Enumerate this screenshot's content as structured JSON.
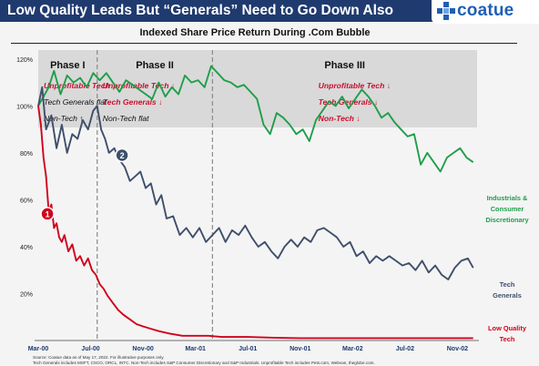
{
  "header": {
    "title": "Low Quality Leads But “Generals” Need to Go Down Also",
    "brand": "coatue"
  },
  "chart_data": {
    "type": "line",
    "title": "Indexed Share Price Return During .Com Bubble",
    "xlabel": "",
    "ylabel": "",
    "ylim": [
      0,
      125
    ],
    "y_ticks": [
      0,
      20,
      40,
      60,
      80,
      100,
      120
    ],
    "y_tick_labels": [
      "",
      "20%",
      "40%",
      "60%",
      "80%",
      "100%",
      "120%"
    ],
    "x_range": [
      0,
      33.5
    ],
    "x_ticks": [
      0,
      4,
      8,
      12,
      16,
      20,
      24,
      28,
      32
    ],
    "x_tick_labels": [
      "Mar-00",
      "Jul-00",
      "Nov-00",
      "Mar-01",
      "Jul-01",
      "Nov-01",
      "Mar-02",
      "Jul-02",
      "Nov-02"
    ],
    "grid": false,
    "phases": [
      {
        "name": "Phase I",
        "start": 0,
        "end": 4.5,
        "lines": [
          {
            "text": "Unprofitable Tech ↓",
            "color": "#c8102e"
          },
          {
            "text": "Tech Generals flat",
            "color": "#111111"
          },
          {
            "text": "Non-Tech ↑",
            "color": "#111111"
          }
        ]
      },
      {
        "name": "Phase II",
        "start": 4.5,
        "end": 13.3,
        "lines": [
          {
            "text": "Unprofitable Tech ↓",
            "color": "#c8102e"
          },
          {
            "text": "Tech Generals ↓",
            "color": "#c8102e"
          },
          {
            "text": "Non-Tech flat",
            "color": "#111111"
          }
        ]
      },
      {
        "name": "Phase III",
        "start": 13.3,
        "end": 33.5,
        "lines": [
          {
            "text": "Unprofitable Tech ↓",
            "color": "#c8102e"
          },
          {
            "text": "Tech Generals ↓",
            "color": "#c8102e"
          },
          {
            "text": "Non-Tech ↓",
            "color": "#c8102e"
          }
        ]
      }
    ],
    "series": [
      {
        "name": "Industrials & Consumer Discretionary",
        "label_lines": [
          "Industrials &",
          "Consumer",
          "Discretionary"
        ],
        "color": "#1f9e4a",
        "x": [
          0,
          0.4,
          0.8,
          1.2,
          1.7,
          2.2,
          2.7,
          3.2,
          3.7,
          4.2,
          4.7,
          5.2,
          5.7,
          6.2,
          6.7,
          7.2,
          7.7,
          8.2,
          8.7,
          9.2,
          9.7,
          10.2,
          10.7,
          11.2,
          11.7,
          12.2,
          12.7,
          13.2,
          13.7,
          14.2,
          14.7,
          15.2,
          15.7,
          16.2,
          16.7,
          17.2,
          17.7,
          18.2,
          18.7,
          19.2,
          19.7,
          20.2,
          20.7,
          21.2,
          21.7,
          22.2,
          22.7,
          23.2,
          23.7,
          24.2,
          24.7,
          25.2,
          25.7,
          26.2,
          26.7,
          27.2,
          27.7,
          28.2,
          28.7,
          29.2,
          29.7,
          30.2,
          30.7,
          31.2,
          31.7,
          32.2,
          32.7,
          33.2
        ],
        "y": [
          100,
          104,
          108,
          115,
          105,
          113,
          110,
          112,
          108,
          114,
          111,
          114,
          110,
          106,
          111,
          109,
          107,
          105,
          103,
          110,
          104,
          108,
          105,
          113,
          110,
          111,
          108,
          117,
          114,
          111,
          110,
          108,
          109,
          106,
          103,
          92,
          88,
          97,
          95,
          92,
          88,
          90,
          85,
          94,
          98,
          102,
          100,
          104,
          99,
          103,
          107,
          104,
          100,
          95,
          97,
          93,
          90,
          87,
          88,
          75,
          80,
          76,
          72,
          78,
          80,
          82,
          78,
          76
        ]
      },
      {
        "name": "Tech Generals",
        "label_lines": [
          "Tech",
          "Generals"
        ],
        "color": "#3f4f6b",
        "x": [
          0,
          0.3,
          0.6,
          1.0,
          1.4,
          1.8,
          2.2,
          2.6,
          3.0,
          3.4,
          3.8,
          4.2,
          4.5,
          4.8,
          5.1,
          5.4,
          5.8,
          6.2,
          6.6,
          7.0,
          7.4,
          7.8,
          8.2,
          8.6,
          9.0,
          9.4,
          9.8,
          10.3,
          10.8,
          11.3,
          11.8,
          12.3,
          12.8,
          13.3,
          13.8,
          14.3,
          14.8,
          15.3,
          15.8,
          16.3,
          16.8,
          17.3,
          17.8,
          18.3,
          18.8,
          19.3,
          19.8,
          20.3,
          20.8,
          21.3,
          21.8,
          22.3,
          22.8,
          23.3,
          23.8,
          24.3,
          24.8,
          25.3,
          25.8,
          26.3,
          26.8,
          27.3,
          27.8,
          28.3,
          28.8,
          29.3,
          29.8,
          30.3,
          30.8,
          31.3,
          31.8,
          32.3,
          32.8,
          33.2
        ],
        "y": [
          100,
          108,
          90,
          96,
          82,
          92,
          80,
          88,
          86,
          94,
          90,
          98,
          100,
          90,
          86,
          80,
          82,
          77,
          74,
          68,
          70,
          72,
          65,
          67,
          58,
          62,
          52,
          53,
          45,
          48,
          44,
          48,
          42,
          45,
          48,
          42,
          47,
          45,
          49,
          44,
          40,
          42,
          38,
          35,
          40,
          43,
          40,
          44,
          42,
          47,
          48,
          46,
          44,
          40,
          42,
          36,
          38,
          33,
          36,
          34,
          36,
          34,
          32,
          33,
          30,
          34,
          29,
          32,
          28,
          26,
          31,
          34,
          35,
          31
        ]
      },
      {
        "name": "Low Quality Tech",
        "label_lines": [
          "Low Quality",
          "Tech"
        ],
        "color": "#d0021b",
        "x": [
          0,
          0.2,
          0.4,
          0.6,
          0.8,
          1.0,
          1.2,
          1.4,
          1.6,
          1.8,
          2.0,
          2.3,
          2.6,
          2.9,
          3.2,
          3.5,
          3.8,
          4.1,
          4.4,
          4.7,
          5.0,
          5.3,
          5.7,
          6.1,
          6.5,
          7.0,
          7.5,
          8.0,
          8.6,
          9.2,
          10,
          11,
          12,
          13,
          14,
          16,
          18,
          20,
          22,
          24,
          26,
          28,
          30,
          32,
          33.2
        ],
        "y": [
          100,
          92,
          78,
          70,
          55,
          58,
          48,
          50,
          44,
          42,
          45,
          38,
          41,
          34,
          36,
          32,
          35,
          30,
          28,
          24,
          22,
          19,
          16,
          13,
          11,
          9,
          7,
          6,
          5,
          4,
          3,
          2,
          2,
          2,
          1.5,
          1.5,
          1.2,
          1,
          1,
          1,
          1,
          1,
          1,
          1,
          1
        ]
      }
    ],
    "markers": [
      {
        "label": "1",
        "x": 0.7,
        "y": 54,
        "fill": "#d0021b"
      },
      {
        "label": "2",
        "x": 6.4,
        "y": 79,
        "fill": "#3f4f6b"
      }
    ]
  },
  "footnote": [
    "Source: Coatue data as of May 17, 2022. For illustrative purposes only.",
    "Tech Generals includes MSFT, CSCO, ORCL, INTC. Non-Tech includes S&P Consumer Discretionary and S&P Industrials. Unprofitable Tech includes Pets.com, Webvan, theglobe.com."
  ]
}
